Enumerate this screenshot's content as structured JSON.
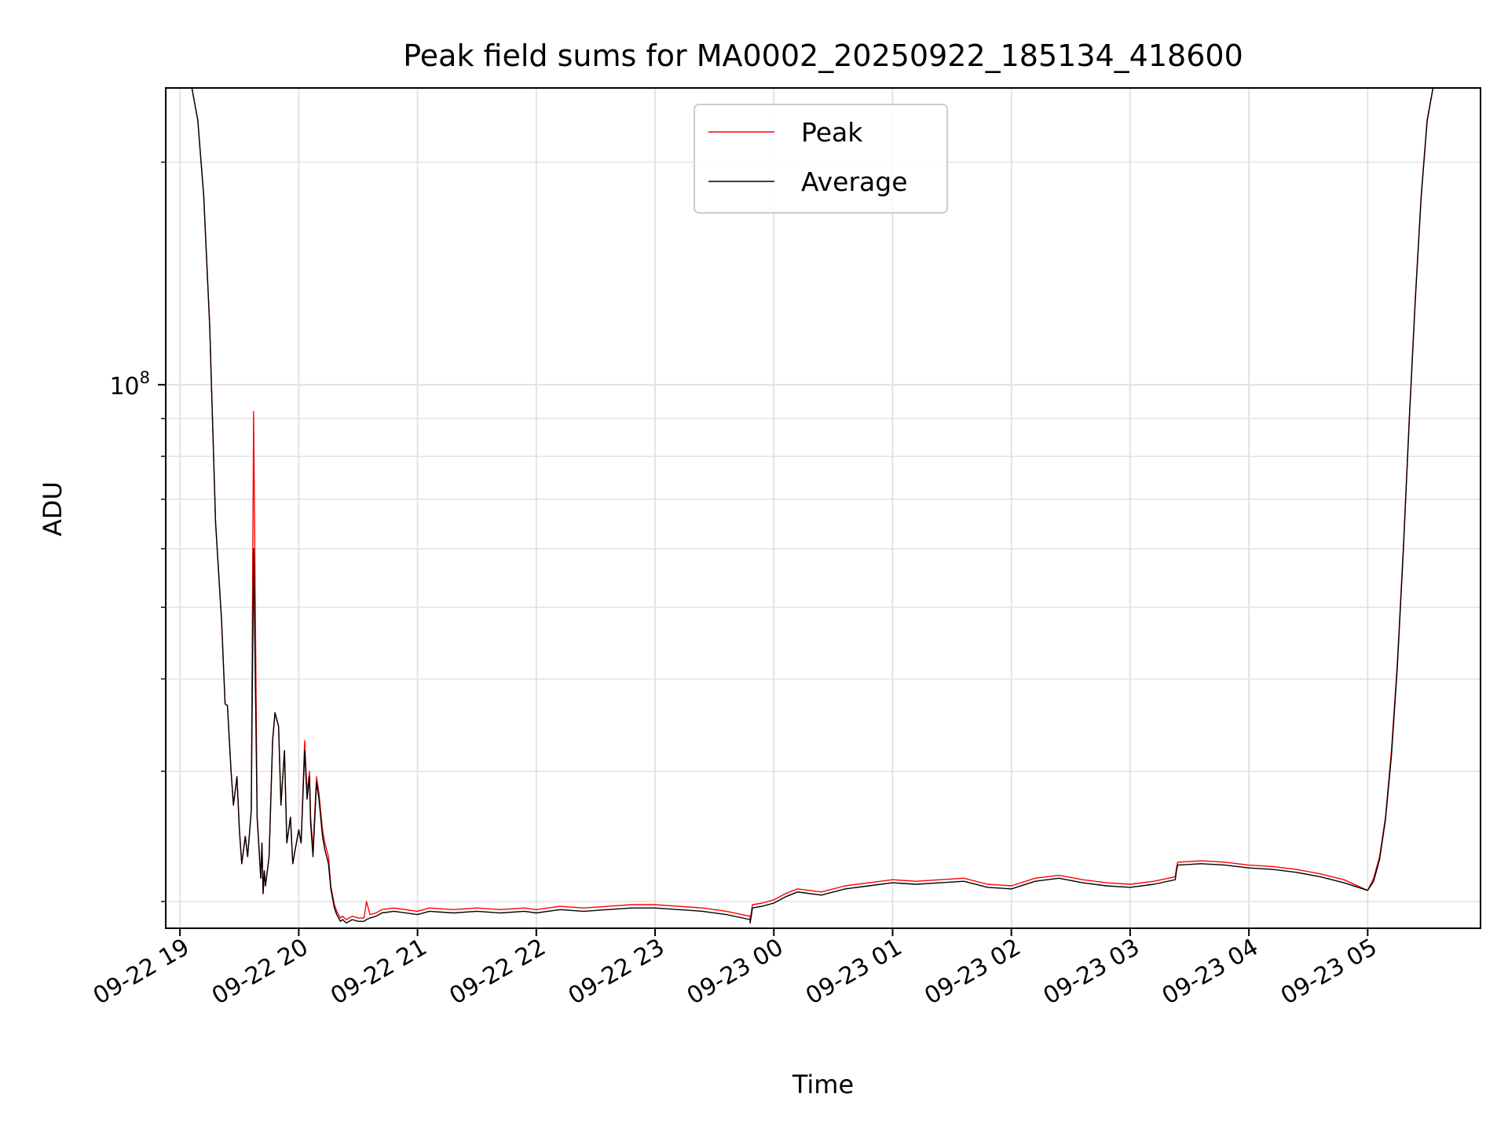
{
  "chart_data": {
    "type": "line",
    "title": "Peak field sums for MA0002_20250922_185134_418600",
    "xlabel": "Time",
    "ylabel": "ADU",
    "yscale": "log",
    "ylim": [
      18400000,
      252000000
    ],
    "y_major_ticks": [
      {
        "value": 100000000,
        "base": "10",
        "exp": "8"
      }
    ],
    "y_minor_ticks": [
      20000000,
      30000000,
      40000000,
      50000000,
      60000000,
      70000000,
      80000000,
      90000000,
      200000000
    ],
    "xlim_hours": [
      -0.12,
      10.95
    ],
    "x_ticks": [
      {
        "hour": 0,
        "label": "09-22 19"
      },
      {
        "hour": 1,
        "label": "09-22 20"
      },
      {
        "hour": 2,
        "label": "09-22 21"
      },
      {
        "hour": 3,
        "label": "09-22 22"
      },
      {
        "hour": 4,
        "label": "09-22 23"
      },
      {
        "hour": 5,
        "label": "09-23 00"
      },
      {
        "hour": 6,
        "label": "09-23 01"
      },
      {
        "hour": 7,
        "label": "09-23 02"
      },
      {
        "hour": 8,
        "label": "09-23 03"
      },
      {
        "hour": 9,
        "label": "09-23 04"
      },
      {
        "hour": 10,
        "label": "09-23 05"
      }
    ],
    "grid": true,
    "legend_position": "upper center",
    "series": [
      {
        "name": "Peak",
        "color": "#ff0000"
      },
      {
        "name": "Average",
        "color": "#000000"
      }
    ],
    "x_hours": [
      -0.12,
      0.1,
      0.15,
      0.2,
      0.25,
      0.3,
      0.35,
      0.38,
      0.4,
      0.43,
      0.45,
      0.48,
      0.5,
      0.52,
      0.55,
      0.57,
      0.6,
      0.62,
      0.65,
      0.68,
      0.69,
      0.7,
      0.71,
      0.72,
      0.75,
      0.78,
      0.8,
      0.83,
      0.85,
      0.88,
      0.9,
      0.93,
      0.95,
      0.97,
      1.0,
      1.02,
      1.05,
      1.07,
      1.09,
      1.1,
      1.12,
      1.15,
      1.17,
      1.2,
      1.22,
      1.25,
      1.27,
      1.3,
      1.32,
      1.35,
      1.37,
      1.4,
      1.45,
      1.5,
      1.55,
      1.57,
      1.6,
      1.65,
      1.7,
      1.8,
      2.0,
      2.1,
      2.3,
      2.5,
      2.7,
      2.9,
      3.0,
      3.2,
      3.4,
      3.6,
      3.8,
      4.0,
      4.2,
      4.4,
      4.6,
      4.8,
      4.8,
      4.81,
      4.82,
      4.9,
      5.0,
      5.1,
      5.2,
      5.4,
      5.6,
      5.8,
      6.0,
      6.2,
      6.4,
      6.6,
      6.8,
      7.0,
      7.2,
      7.4,
      7.6,
      7.8,
      8.0,
      8.2,
      8.38,
      8.39,
      8.4,
      8.6,
      8.8,
      9.0,
      9.2,
      9.4,
      9.6,
      9.8,
      10.0,
      10.05,
      10.1,
      10.15,
      10.2,
      10.25,
      10.3,
      10.35,
      10.4,
      10.45,
      10.5,
      10.55,
      10.6,
      10.65,
      10.7,
      10.95
    ],
    "peak_values": [
      252000000,
      252000000,
      228000000,
      180000000,
      120000000,
      65000000,
      48000000,
      37000000,
      36800000,
      30000000,
      27000000,
      29500000,
      25000000,
      22500000,
      24500000,
      23000000,
      26500000,
      92000000,
      26000000,
      21500000,
      24000000,
      20500000,
      22000000,
      21000000,
      23000000,
      33000000,
      36000000,
      34500000,
      27000000,
      32000000,
      24000000,
      26000000,
      22500000,
      23500000,
      25000000,
      24000000,
      33000000,
      28000000,
      30000000,
      26000000,
      23500000,
      29500000,
      28000000,
      25000000,
      24000000,
      23000000,
      21000000,
      19800000,
      19400000,
      19000000,
      19100000,
      18900000,
      19100000,
      19000000,
      19000000,
      20000000,
      19200000,
      19300000,
      19500000,
      19600000,
      19400000,
      19600000,
      19500000,
      19600000,
      19500000,
      19600000,
      19500000,
      19700000,
      19600000,
      19700000,
      19800000,
      19800000,
      19700000,
      19600000,
      19400000,
      19100000,
      18900000,
      19300000,
      19800000,
      19900000,
      20100000,
      20500000,
      20800000,
      20600000,
      21000000,
      21200000,
      21400000,
      21300000,
      21400000,
      21500000,
      21100000,
      21000000,
      21500000,
      21700000,
      21400000,
      21200000,
      21100000,
      21300000,
      21600000,
      22200000,
      22600000,
      22700000,
      22600000,
      22400000,
      22300000,
      22100000,
      21800000,
      21400000,
      20700000,
      21500000,
      23000000,
      26000000,
      32000000,
      42000000,
      60000000,
      90000000,
      130000000,
      180000000,
      228000000,
      252000000,
      252000000,
      252000000,
      252000000,
      252000000,
      252000000,
      252000000,
      252000000
    ],
    "average_values": [
      252000000,
      252000000,
      228000000,
      180000000,
      120000000,
      65000000,
      48000000,
      37000000,
      36800000,
      30000000,
      27000000,
      29500000,
      25000000,
      22500000,
      24500000,
      23000000,
      26500000,
      60000000,
      26000000,
      21500000,
      24000000,
      20500000,
      22000000,
      21000000,
      23000000,
      33000000,
      36000000,
      34500000,
      27000000,
      32000000,
      24000000,
      26000000,
      22500000,
      23500000,
      25000000,
      24000000,
      32000000,
      27500000,
      29500000,
      25500000,
      23000000,
      29000000,
      27500000,
      24500000,
      23500000,
      22500000,
      20800000,
      19600000,
      19200000,
      18800000,
      18900000,
      18700000,
      18900000,
      18800000,
      18800000,
      18900000,
      19000000,
      19100000,
      19300000,
      19400000,
      19200000,
      19400000,
      19300000,
      19400000,
      19300000,
      19400000,
      19300000,
      19500000,
      19400000,
      19500000,
      19600000,
      19600000,
      19500000,
      19400000,
      19200000,
      18900000,
      18700000,
      19100000,
      19600000,
      19700000,
      19900000,
      20300000,
      20600000,
      20400000,
      20800000,
      21000000,
      21200000,
      21100000,
      21200000,
      21300000,
      20900000,
      20800000,
      21300000,
      21500000,
      21200000,
      21000000,
      20900000,
      21100000,
      21400000,
      22000000,
      22400000,
      22500000,
      22400000,
      22200000,
      22100000,
      21900000,
      21600000,
      21200000,
      20700000,
      21300000,
      22800000,
      25800000,
      31500000,
      41500000,
      59500000,
      89500000,
      129000000,
      179000000,
      227000000,
      252000000,
      252000000,
      252000000,
      252000000,
      252000000,
      252000000,
      252000000,
      252000000
    ]
  }
}
